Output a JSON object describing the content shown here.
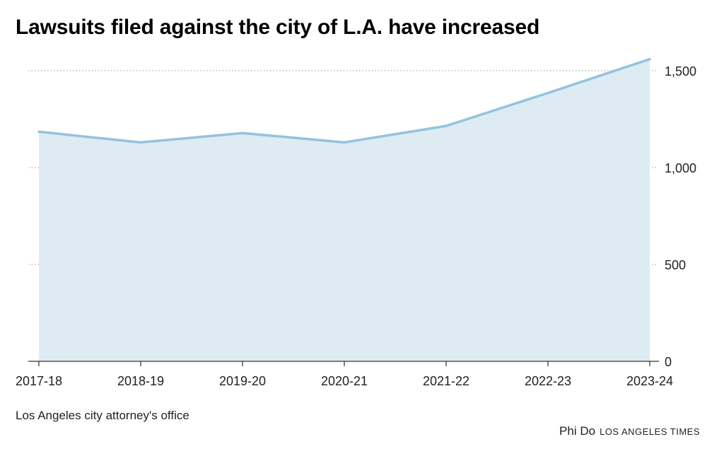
{
  "title": "Lawsuits filed against the city of L.A. have increased",
  "source": "Los Angeles city attorney's office",
  "credit": {
    "author": "Phi Do",
    "org": "LOS ANGELES TIMES"
  },
  "colors": {
    "line": "#93c3de",
    "area": "#deebf3",
    "grid": "#999999",
    "axis": "#333333"
  },
  "chart_data": {
    "type": "area",
    "title": "Lawsuits filed against the city of L.A. have increased",
    "xlabel": "",
    "ylabel": "",
    "categories": [
      "2017-18",
      "2018-19",
      "2019-20",
      "2020-21",
      "2021-22",
      "2022-23",
      "2023-24"
    ],
    "values": [
      1185,
      1130,
      1178,
      1130,
      1215,
      1385,
      1560
    ],
    "ylim": [
      0,
      1600
    ],
    "yticks": [
      0,
      500,
      1000,
      1500
    ],
    "ytick_labels": [
      "0",
      "500",
      "1,000",
      "1,500"
    ],
    "y_axis_side": "right",
    "grid": true
  }
}
